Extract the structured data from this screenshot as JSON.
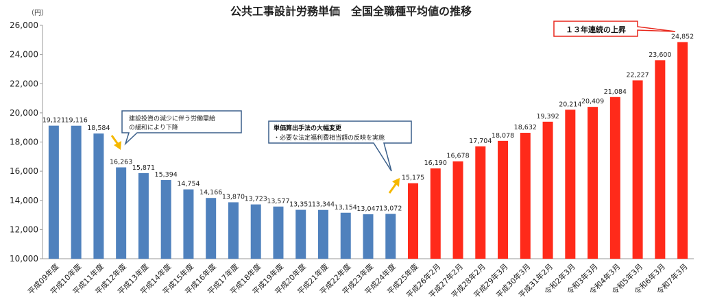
{
  "chart_data": {
    "type": "bar",
    "title": "公共工事設計労務単価　全国全職種平均値の推移",
    "ylabel": "（円）",
    "ylim": [
      10000,
      26000
    ],
    "yticks": [
      "10,000",
      "12,000",
      "14,000",
      "16,000",
      "18,000",
      "20,000",
      "22,000",
      "24,000",
      "26,000"
    ],
    "grid": false,
    "categories": [
      "平成09年度",
      "平成10年度",
      "平成11年度",
      "平成12年度",
      "平成13年度",
      "平成14年度",
      "平成15年度",
      "平成16年度",
      "平成17年度",
      "平成18年度",
      "平成19年度",
      "平成20年度",
      "平成21年度",
      "平成22年度",
      "平成23年度",
      "平成24年度",
      "平成25年度",
      "平成26年2月",
      "平成27年2月",
      "平成28年2月",
      "平成29年3月",
      "平成30年3月",
      "平成31年2月",
      "令和2年3月",
      "令和3年3月",
      "令和4年3月",
      "令和5年3月",
      "令和6年3月",
      "令和7年3月"
    ],
    "values": [
      19121,
      19116,
      18584,
      16263,
      15871,
      15394,
      14754,
      14166,
      13870,
      13723,
      13577,
      13351,
      13344,
      13154,
      13047,
      13072,
      15175,
      16190,
      16678,
      17704,
      18078,
      18632,
      19392,
      20214,
      20409,
      21084,
      22227,
      23600,
      24852
    ],
    "data_labels": [
      "19,121",
      "19,116",
      "18,584",
      "16,263",
      "15,871",
      "15,394",
      "14,754",
      "14,166",
      "13,870",
      "13,723",
      "13,577",
      "13,351",
      "13,344",
      "13,154",
      "13,047",
      "13,072",
      "15,175",
      "16,190",
      "16,678",
      "17,704",
      "18,078",
      "18,632",
      "19,392",
      "20,214",
      "20,409",
      "21,084",
      "22,227",
      "23,600",
      "24,852"
    ],
    "colors": {
      "blue": "#4f81bd",
      "red": "#ff2a1a",
      "arrow": "#f5b800",
      "callout_border": "#3a5f8a",
      "red_box": "#e8261b"
    },
    "blue_count": 16,
    "annotations": {
      "callout1": [
        "建設投資の減少に伴う労働需給",
        "の緩和により下降"
      ],
      "callout2_title": "単価算出手法の大幅変更",
      "callout2_line": "・必要な法定福利費相当額の反映を実施",
      "red_box": "１３年連続の上昇"
    }
  }
}
